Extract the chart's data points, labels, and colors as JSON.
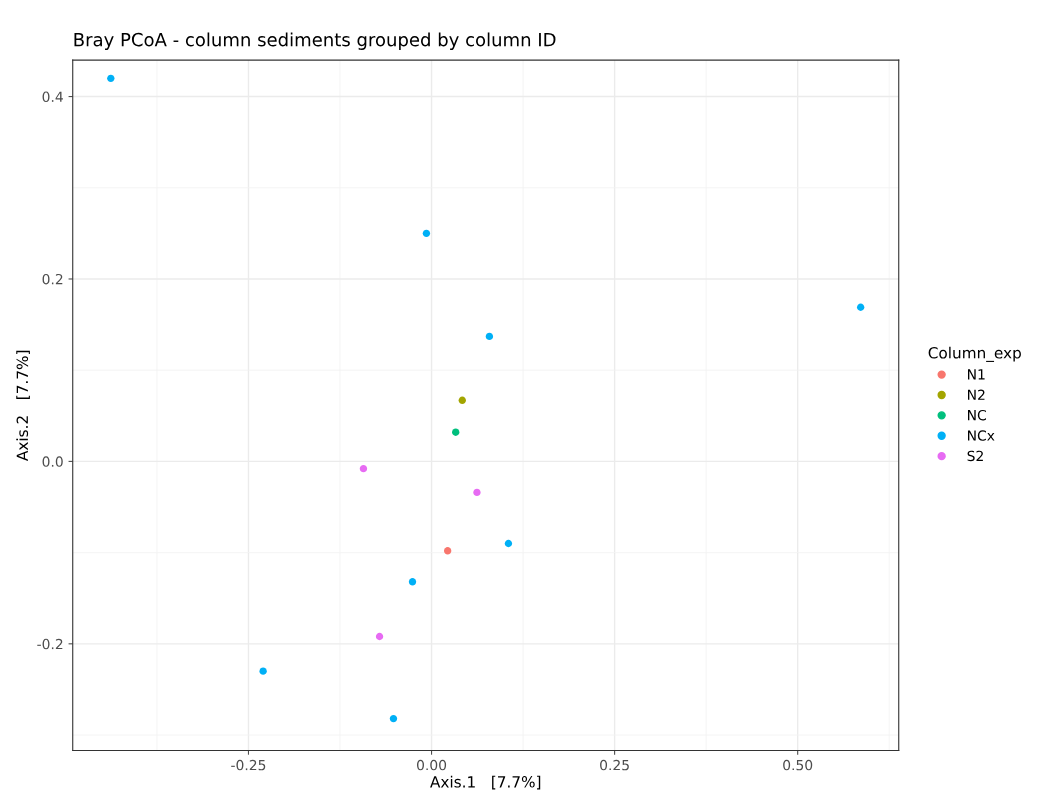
{
  "chart_data": {
    "type": "scatter",
    "title": "Bray PCoA - column sediments grouped by column ID",
    "xlabel": "Axis.1   [7.7%]",
    "ylabel": "Axis.2   [7.7%]",
    "legend_title": "Column_exp",
    "xlim": [
      -0.49,
      0.638
    ],
    "ylim": [
      -0.317,
      0.44
    ],
    "xticks": [
      {
        "value": -0.25,
        "label": "-0.25"
      },
      {
        "value": 0,
        "label": "0.00"
      },
      {
        "value": 0.25,
        "label": "0.25"
      },
      {
        "value": 0.5,
        "label": "0.50"
      }
    ],
    "yticks": [
      {
        "value": -0.2,
        "label": "-0.2"
      },
      {
        "value": 0,
        "label": "0.0"
      },
      {
        "value": 0.2,
        "label": "0.2"
      },
      {
        "value": 0.4,
        "label": "0.4"
      }
    ],
    "grid": true,
    "legend": "right",
    "marker": "circle",
    "series": [
      {
        "name": "N1",
        "color": "#f8766d",
        "x": [
          0.022
        ],
        "values": [
          -0.098
        ]
      },
      {
        "name": "N2",
        "color": "#a3a500",
        "x": [
          0.042
        ],
        "values": [
          0.067
        ]
      },
      {
        "name": "NC",
        "color": "#00bf7d",
        "x": [
          0.033
        ],
        "values": [
          0.032
        ]
      },
      {
        "name": "NCx",
        "color": "#00b0f6",
        "x": [
          -0.438,
          -0.007,
          0.586,
          0.079,
          0.105,
          -0.026,
          -0.23,
          -0.052
        ],
        "values": [
          0.42,
          0.25,
          0.169,
          0.137,
          -0.09,
          -0.132,
          -0.23,
          -0.282
        ]
      },
      {
        "name": "S2",
        "color": "#e76bf3",
        "x": [
          -0.093,
          0.062,
          -0.071
        ],
        "values": [
          -0.008,
          -0.034,
          -0.192
        ]
      }
    ]
  }
}
